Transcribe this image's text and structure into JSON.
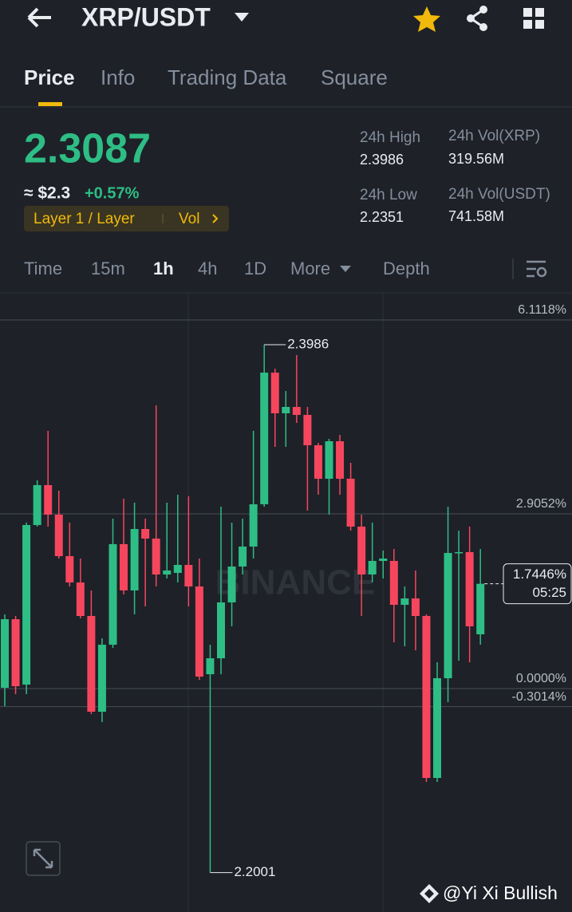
{
  "header": {
    "title": "XRP/USDT"
  },
  "tabs": [
    "Price",
    "Info",
    "Trading Data",
    "Square"
  ],
  "price": {
    "last": "2.3087",
    "fiat": "≈ $2.3",
    "change": "+0.57%",
    "tags": [
      "Layer 1 / Layer",
      "Vol"
    ]
  },
  "stats": [
    {
      "label": "24h High",
      "value": "2.3986"
    },
    {
      "label": "24h Vol(XRP)",
      "value": "319.56M"
    },
    {
      "label": "24h Low",
      "value": "2.2351"
    },
    {
      "label": "24h Vol(USDT)",
      "value": "741.58M"
    }
  ],
  "intervals": [
    "Time",
    "15m",
    "1h",
    "4h",
    "1D",
    "More",
    "Depth"
  ],
  "chart_data": {
    "type": "candlestick",
    "up_color": "#2ebd85",
    "down_color": "#f6465d",
    "watermark": "BINANCE",
    "open": [
      2.2696,
      2.2954,
      2.2708,
      2.3308,
      2.3458,
      2.3347,
      2.3191,
      2.3092,
      2.2966,
      2.2606,
      2.2858,
      2.3236,
      2.3062,
      2.3293,
      2.3257,
      2.3122,
      2.3128,
      2.3158,
      2.3077,
      2.2747,
      2.2807,
      2.3017,
      2.3152,
      2.3227,
      2.3386,
      2.3881,
      2.3728,
      2.3752,
      2.3722,
      2.3608,
      2.3482,
      2.3623,
      2.3482,
      2.3302,
      2.3122,
      2.3173,
      2.3173,
      2.3008,
      2.3032,
      2.2966,
      2.2357,
      2.2732,
      2.3203,
      2.3206,
      2.2897
    ],
    "high": [
      2.2972,
      2.2966,
      2.3317,
      2.3476,
      2.3662,
      2.3437,
      2.3317,
      2.3182,
      2.3062,
      2.2882,
      2.3332,
      2.3407,
      2.3392,
      2.3332,
      2.3758,
      2.3392,
      2.3422,
      2.3416,
      2.3182,
      2.2858,
      2.3377,
      2.3317,
      2.3332,
      2.3662,
      2.3986,
      2.3896,
      2.3812,
      2.3947,
      2.3752,
      2.3617,
      2.3632,
      2.3647,
      2.3542,
      2.3347,
      2.3317,
      2.3212,
      2.3218,
      2.3077,
      2.3137,
      2.2972,
      2.2792,
      2.3377,
      2.3287,
      2.3302,
      2.3218
    ],
    "low": [
      2.2627,
      2.2672,
      2.2672,
      2.3302,
      2.3302,
      2.3182,
      2.3077,
      2.2957,
      2.2597,
      2.2567,
      2.2846,
      2.3047,
      2.2972,
      2.3002,
      2.3077,
      2.3107,
      2.3092,
      2.3002,
      2.2726,
      2.2001,
      2.2747,
      2.2927,
      2.3122,
      2.3182,
      2.3377,
      2.3602,
      2.3602,
      2.3692,
      2.3362,
      2.3422,
      2.3347,
      2.3422,
      2.3287,
      2.2966,
      2.3092,
      2.3107,
      2.2867,
      2.2852,
      2.2837,
      2.2342,
      2.2342,
      2.2642,
      2.2798,
      2.2792,
      2.2858
    ],
    "close": [
      2.2954,
      2.2702,
      2.3308,
      2.3458,
      2.3347,
      2.3191,
      2.3092,
      2.2966,
      2.2606,
      2.2858,
      2.3236,
      2.3062,
      2.3293,
      2.3257,
      2.3122,
      2.3137,
      2.3158,
      2.3077,
      2.2738,
      2.2807,
      2.3017,
      2.3152,
      2.3227,
      2.3386,
      2.3881,
      2.3728,
      2.3752,
      2.3722,
      2.3608,
      2.3482,
      2.3623,
      2.3482,
      2.3302,
      2.3122,
      2.3173,
      2.3182,
      2.3008,
      2.3032,
      2.2966,
      2.2357,
      2.2732,
      2.3203,
      2.3206,
      2.2927,
      2.3087
    ],
    "ylim": [
      2.1862,
      2.4181
    ],
    "yticks": [
      {
        "value": 2.4079,
        "label": "6.1118%"
      },
      {
        "value": 2.335,
        "label": "2.9052%"
      },
      {
        "value": 2.2693,
        "label": "0.0000%"
      },
      {
        "value": 2.2625,
        "label": "-0.3014%"
      }
    ],
    "grid": true,
    "current": {
      "value": 2.3087,
      "label": "1.7446%",
      "countdown": "05:25"
    }
  },
  "footer": "@Yi Xi Bullish"
}
